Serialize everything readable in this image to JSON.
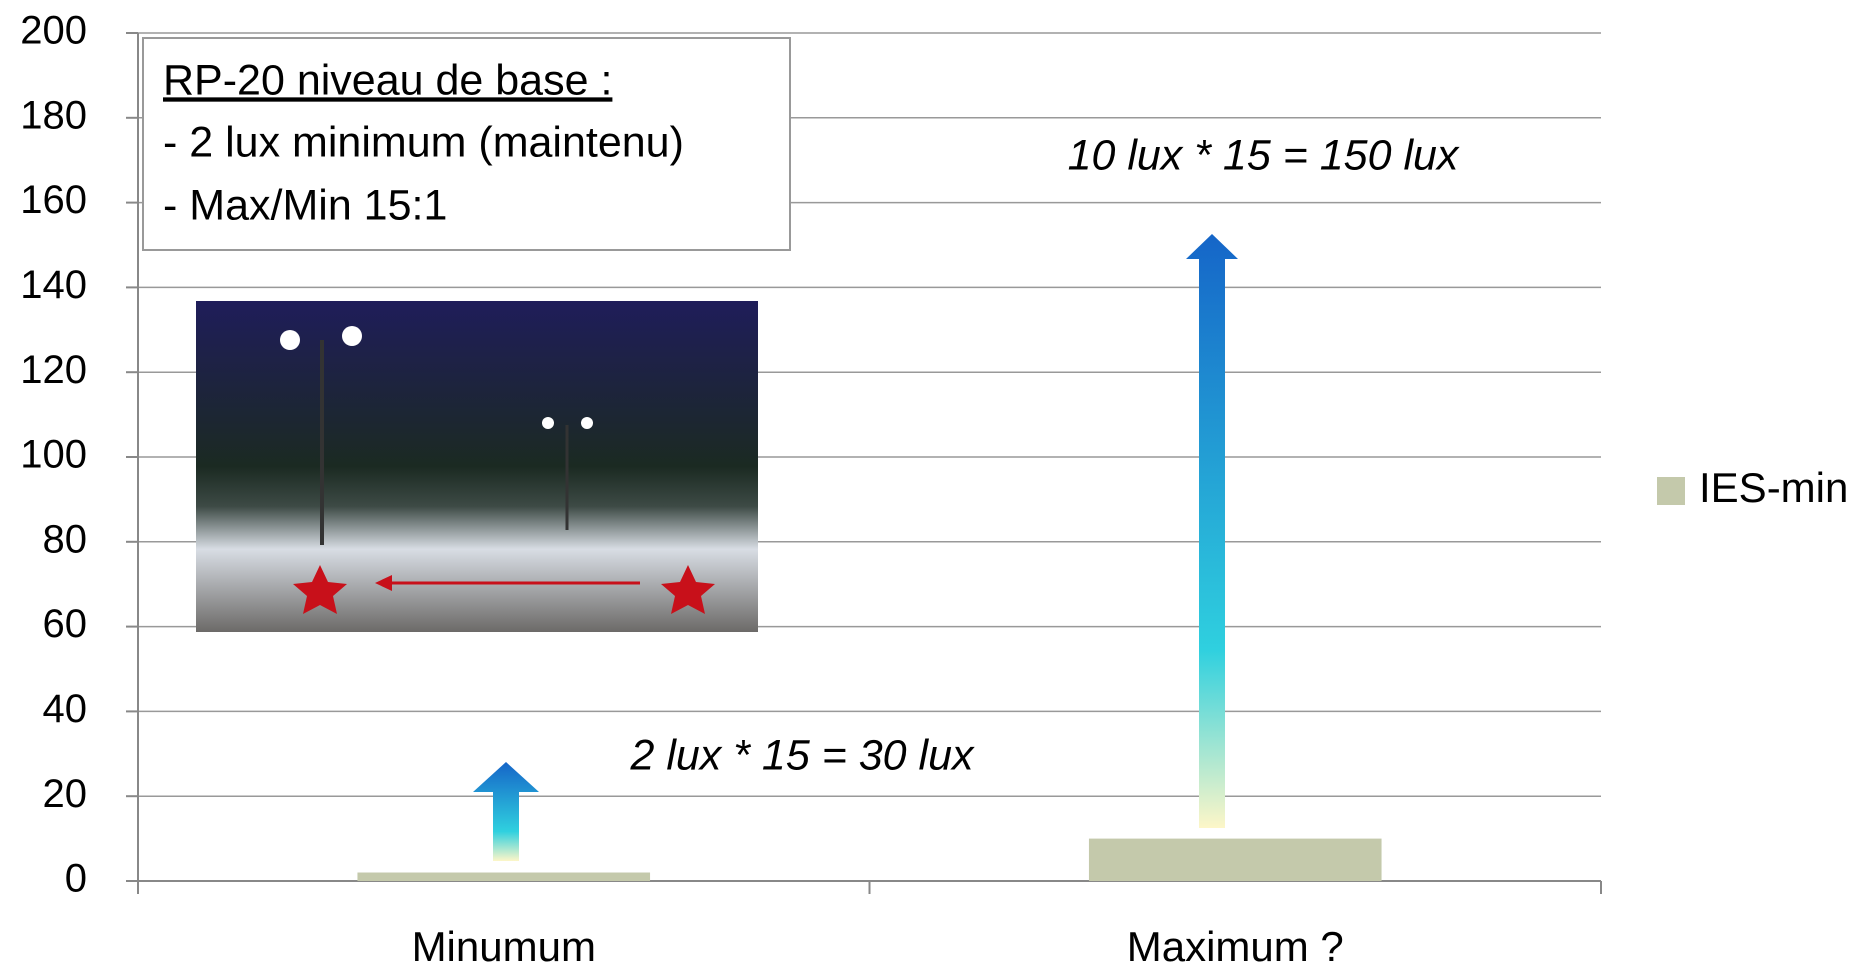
{
  "chart_data": {
    "type": "bar",
    "categories": [
      "Minumum",
      "Maximum ?"
    ],
    "series": [
      {
        "name": "IES-min",
        "color": "#c4c9ab",
        "values": [
          2,
          10
        ]
      }
    ],
    "ylim": [
      0,
      200
    ],
    "yticks": [
      0,
      20,
      40,
      60,
      80,
      100,
      120,
      140,
      160,
      180,
      200
    ],
    "grid": true,
    "legend": "right",
    "text_box": {
      "title": "RP-20 niveau de base :",
      "lines": [
        "- 2 lux minimum (maintenu)",
        "- Max/Min 15:1"
      ]
    },
    "annotations": [
      "2 lux * 15 = 30 lux",
      "10 lux * 15 = 150 lux"
    ]
  }
}
